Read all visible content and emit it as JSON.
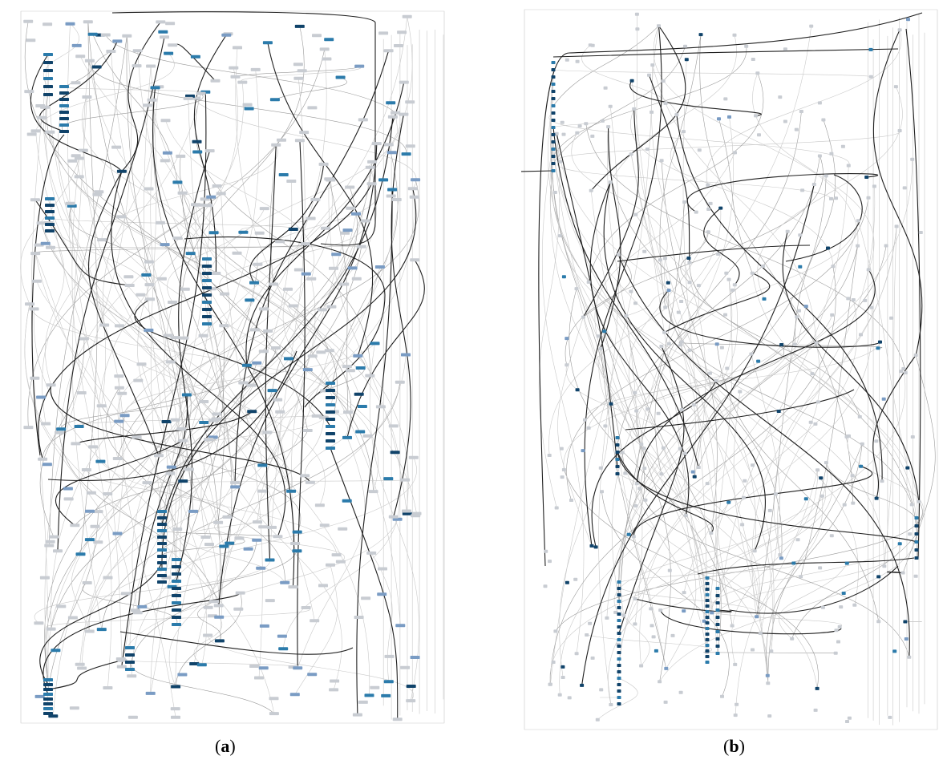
{
  "figure": {
    "panels": [
      {
        "id": "a",
        "label": "a",
        "open": "(",
        "close": ")"
      },
      {
        "id": "b",
        "label": "b",
        "open": "(",
        "close": ")"
      }
    ]
  },
  "colors": {
    "background": "#ffffff",
    "edge_faint": "#c9c9c9",
    "edge_mid": "#9a9a9a",
    "edge_strong": "#1f1f1f",
    "node_dark": "#10436a",
    "node_mid": "#2b7bab",
    "node_light": "#7a9cc4",
    "node_grey": "#c8ccd2"
  },
  "icons": [
    "directed-graph-a",
    "directed-graph-b"
  ]
}
